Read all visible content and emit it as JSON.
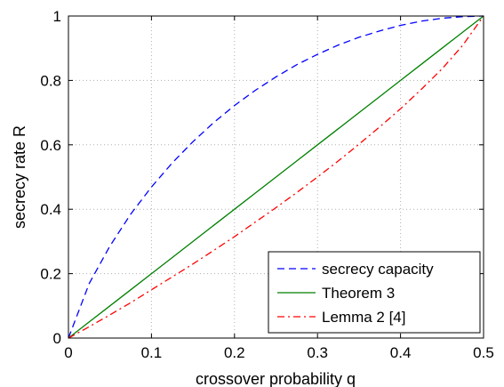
{
  "chart_data": {
    "type": "line",
    "xlabel": "crossover probability q",
    "ylabel": "secrecy rate R",
    "xlim": [
      0,
      0.5
    ],
    "ylim": [
      0,
      1
    ],
    "xticks": [
      "0",
      "0.1",
      "0.2",
      "0.3",
      "0.4",
      "0.5"
    ],
    "yticks": [
      "0",
      "0.2",
      "0.4",
      "0.6",
      "0.8",
      "1"
    ],
    "grid": true,
    "legend_position": "bottom-right",
    "x": [
      0,
      0.025,
      0.05,
      0.075,
      0.1,
      0.125,
      0.15,
      0.175,
      0.2,
      0.225,
      0.25,
      0.275,
      0.3,
      0.325,
      0.35,
      0.375,
      0.4,
      0.425,
      0.45,
      0.475,
      0.5
    ],
    "series": [
      {
        "name": "secrecy capacity",
        "color": "#0000ff",
        "style": "dashed",
        "values": [
          0,
          0.169,
          0.286,
          0.385,
          0.469,
          0.544,
          0.61,
          0.669,
          0.722,
          0.769,
          0.811,
          0.849,
          0.881,
          0.91,
          0.934,
          0.954,
          0.971,
          0.984,
          0.993,
          0.998,
          1.0
        ]
      },
      {
        "name": "Theorem 3",
        "color": "#008000",
        "style": "solid",
        "values": [
          0,
          0.05,
          0.1,
          0.15,
          0.2,
          0.25,
          0.3,
          0.35,
          0.4,
          0.45,
          0.5,
          0.55,
          0.6,
          0.65,
          0.7,
          0.75,
          0.8,
          0.85,
          0.9,
          0.95,
          1.0
        ]
      },
      {
        "name": "Lemma 2 [4]",
        "color": "#ff0000",
        "style": "dashdot",
        "values": [
          0,
          0.035,
          0.072,
          0.11,
          0.15,
          0.19,
          0.23,
          0.272,
          0.315,
          0.36,
          0.405,
          0.452,
          0.5,
          0.55,
          0.602,
          0.656,
          0.712,
          0.772,
          0.836,
          0.909,
          1.0
        ]
      }
    ]
  }
}
